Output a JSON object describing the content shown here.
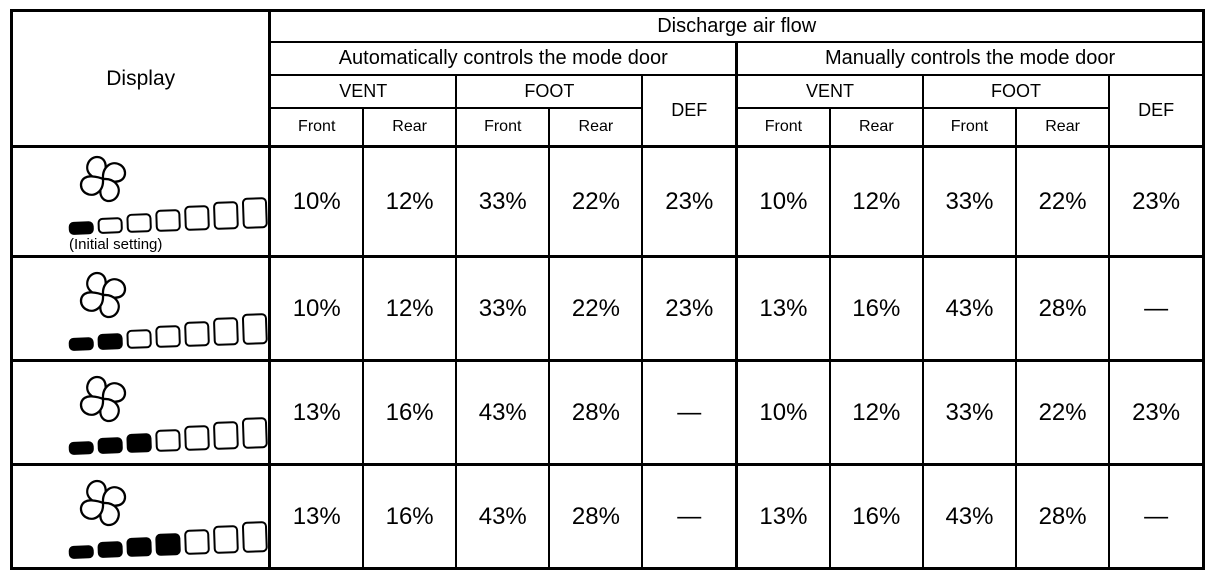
{
  "table": {
    "header": {
      "display": "Display",
      "discharge_air_flow": "Discharge air flow",
      "auto_section": "Automatically controls the mode door",
      "manual_section": "Manually controls the mode door",
      "vent": "VENT",
      "foot": "FOOT",
      "def": "DEF",
      "front": "Front",
      "rear": "Rear"
    },
    "rows": [
      {
        "display": {
          "icon": "fan-icon",
          "bars_total": 7,
          "bars_filled": 1,
          "note": "(Initial setting)"
        },
        "values": [
          "10%",
          "12%",
          "33%",
          "22%",
          "23%",
          "10%",
          "12%",
          "33%",
          "22%",
          "23%"
        ]
      },
      {
        "display": {
          "icon": "fan-icon",
          "bars_total": 7,
          "bars_filled": 2
        },
        "values": [
          "10%",
          "12%",
          "33%",
          "22%",
          "23%",
          "13%",
          "16%",
          "43%",
          "28%",
          "—"
        ]
      },
      {
        "display": {
          "icon": "fan-icon",
          "bars_total": 7,
          "bars_filled": 3
        },
        "values": [
          "13%",
          "16%",
          "43%",
          "28%",
          "—",
          "10%",
          "12%",
          "33%",
          "22%",
          "23%"
        ]
      },
      {
        "display": {
          "icon": "fan-icon",
          "bars_total": 7,
          "bars_filled": 4
        },
        "values": [
          "13%",
          "16%",
          "43%",
          "28%",
          "—",
          "13%",
          "16%",
          "43%",
          "28%",
          "—"
        ]
      }
    ]
  },
  "colors": {
    "border": "#000000",
    "background": "#ffffff",
    "text": "#000000",
    "bar_fill": "#000000"
  }
}
